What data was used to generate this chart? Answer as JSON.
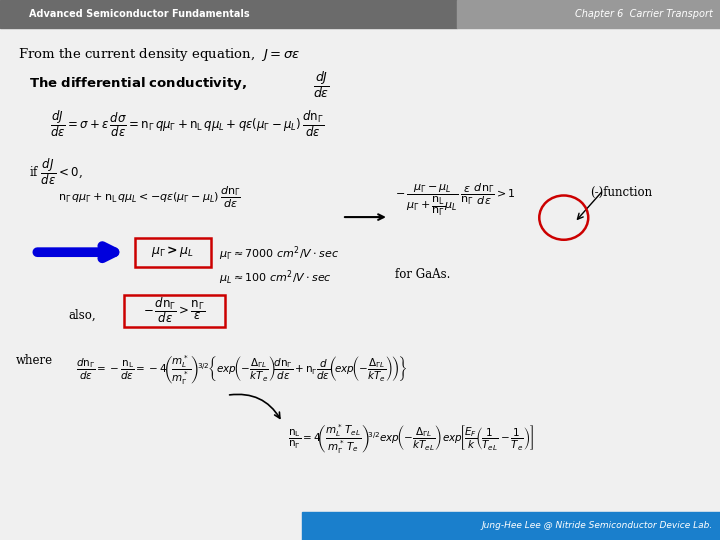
{
  "header_left": "Advanced Semiconductor Fundamentals",
  "header_right": "Chapter 6  Carrier Transport",
  "footer_text": "Jung-Hee Lee @ Nitride Semiconductor Device Lab.",
  "header_bg_left": "#6b6b6b",
  "header_bg_right": "#999999",
  "footer_bg": "#1a7fcc",
  "slide_bg": "#f0f0f0",
  "header_text_color": "#ffffff",
  "footer_text_color": "#ffffff",
  "body_text_color": "#000000",
  "red_box_color": "#cc0000",
  "blue_arrow_color": "#0000dd",
  "figsize": [
    7.2,
    5.4
  ],
  "dpi": 100
}
